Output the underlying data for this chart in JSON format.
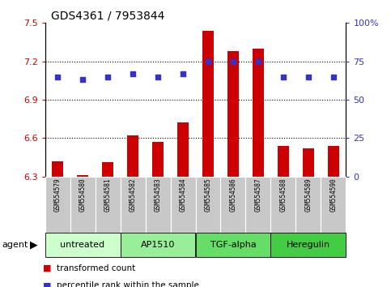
{
  "title": "GDS4361 / 7953844",
  "samples": [
    "GSM554579",
    "GSM554580",
    "GSM554581",
    "GSM554582",
    "GSM554583",
    "GSM554584",
    "GSM554585",
    "GSM554586",
    "GSM554587",
    "GSM554588",
    "GSM554589",
    "GSM554590"
  ],
  "bar_values": [
    6.42,
    6.31,
    6.41,
    6.62,
    6.57,
    6.72,
    7.44,
    7.28,
    7.3,
    6.54,
    6.52,
    6.54
  ],
  "scatter_values": [
    65,
    63,
    65,
    67,
    65,
    67,
    75,
    75,
    75,
    65,
    65,
    65
  ],
  "bar_color": "#cc0000",
  "scatter_color": "#3333cc",
  "bar_bottom": 6.3,
  "ylim_left": [
    6.3,
    7.5
  ],
  "ylim_right": [
    0,
    100
  ],
  "yticks_left": [
    6.3,
    6.6,
    6.9,
    7.2,
    7.5
  ],
  "ytick_labels_left": [
    "6.3",
    "6.6",
    "6.9",
    "7.2",
    "7.5"
  ],
  "yticks_right": [
    0,
    25,
    50,
    75,
    100
  ],
  "ytick_labels_right": [
    "0",
    "25",
    "50",
    "75",
    "100%"
  ],
  "hlines": [
    6.6,
    6.9,
    7.2
  ],
  "groups": [
    {
      "label": "untreated",
      "start": 0,
      "end": 3
    },
    {
      "label": "AP1510",
      "start": 3,
      "end": 6
    },
    {
      "label": "TGF-alpha",
      "start": 6,
      "end": 9
    },
    {
      "label": "Heregulin",
      "start": 9,
      "end": 12
    }
  ],
  "group_colors": [
    "#ccffcc",
    "#99ee99",
    "#66dd66",
    "#44cc44"
  ],
  "legend_bar_label": "transformed count",
  "legend_scatter_label": "percentile rank within the sample",
  "agent_label": "agent",
  "left_tick_color": "#cc0000",
  "right_tick_color": "#3333cc",
  "title_color": "#000000",
  "bg_color": "#ffffff",
  "tick_bg_color": "#c8c8c8",
  "bar_width": 0.45
}
